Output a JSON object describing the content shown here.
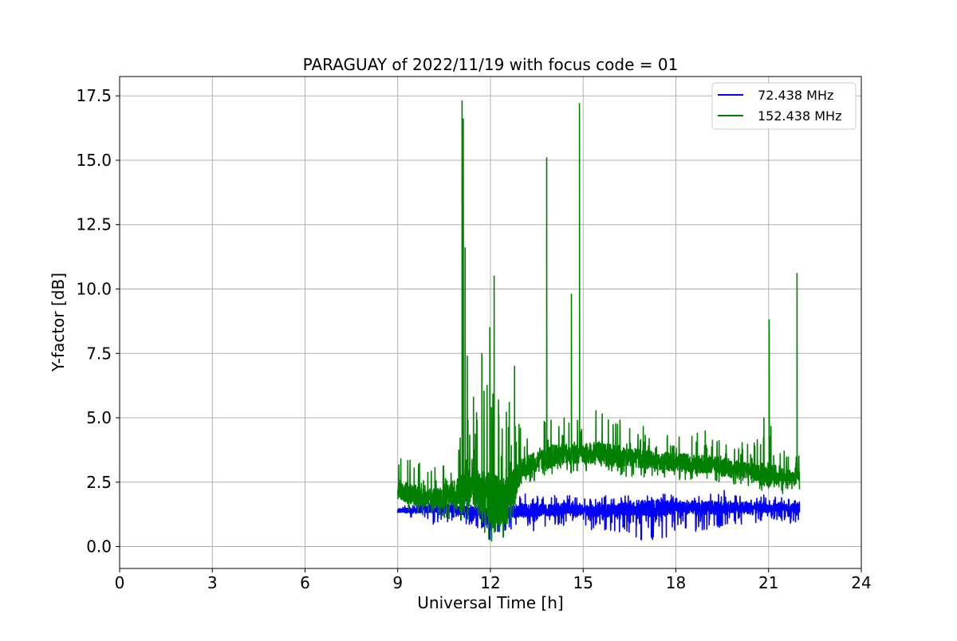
{
  "chart_data": {
    "type": "line",
    "title": "PARAGUAY of 2022/11/19 with focus code = 01",
    "xlabel": "Universal Time [h]",
    "ylabel": "Y-factor [dB]",
    "xlim": [
      0,
      24
    ],
    "ylim": [
      -0.85,
      18.25
    ],
    "xticks": [
      0,
      3,
      6,
      9,
      12,
      15,
      18,
      21,
      24
    ],
    "yticks": [
      0.0,
      2.5,
      5.0,
      7.5,
      10.0,
      12.5,
      15.0,
      17.5
    ],
    "xtick_labels": [
      "0",
      "3",
      "6",
      "9",
      "12",
      "15",
      "18",
      "21",
      "24"
    ],
    "ytick_labels": [
      "0.0",
      "2.5",
      "5.0",
      "7.5",
      "10.0",
      "12.5",
      "15.0",
      "17.5"
    ],
    "grid": true,
    "legend": "top-right",
    "series": [
      {
        "name": " 72.438 MHz",
        "color": "#0000ff",
        "x": [
          9.0,
          9.5,
          10.0,
          10.5,
          11.0,
          11.5,
          12.0,
          12.5,
          13.0,
          13.5,
          14.0,
          14.5,
          15.0,
          15.5,
          16.0,
          16.5,
          17.0,
          17.5,
          18.0,
          18.5,
          19.0,
          19.5,
          20.0,
          20.5,
          21.0,
          21.5,
          22.0
        ],
        "y": [
          1.4,
          1.4,
          1.5,
          1.5,
          1.4,
          1.4,
          1.2,
          1.3,
          1.4,
          1.4,
          1.4,
          1.5,
          1.4,
          1.4,
          1.4,
          1.5,
          1.5,
          1.5,
          1.5,
          1.5,
          1.5,
          1.5,
          1.5,
          1.5,
          1.5,
          1.5,
          1.5
        ],
        "noise_band": [
          [
            9.0,
            1.3,
            1.7
          ],
          [
            9.5,
            1.0,
            1.7
          ],
          [
            10.0,
            0.8,
            1.8
          ],
          [
            10.5,
            0.9,
            1.9
          ],
          [
            11.0,
            0.9,
            1.8
          ],
          [
            11.5,
            0.8,
            1.8
          ],
          [
            12.0,
            0.2,
            1.6
          ],
          [
            12.5,
            0.6,
            1.8
          ],
          [
            13.0,
            0.5,
            2.1
          ],
          [
            13.5,
            0.6,
            2.1
          ],
          [
            14.0,
            0.6,
            2.0
          ],
          [
            14.5,
            0.7,
            2.0
          ],
          [
            15.0,
            0.7,
            1.9
          ],
          [
            15.5,
            0.6,
            2.0
          ],
          [
            16.0,
            0.5,
            2.0
          ],
          [
            16.5,
            0.4,
            2.0
          ],
          [
            17.0,
            0.2,
            2.1
          ],
          [
            17.5,
            0.1,
            2.1
          ],
          [
            18.0,
            0.6,
            2.0
          ],
          [
            18.5,
            0.6,
            2.0
          ],
          [
            19.0,
            0.5,
            2.0
          ],
          [
            19.5,
            0.7,
            2.2
          ],
          [
            20.0,
            0.8,
            2.0
          ],
          [
            20.5,
            0.6,
            2.0
          ],
          [
            21.0,
            1.0,
            2.0
          ],
          [
            21.5,
            1.0,
            1.9
          ],
          [
            22.0,
            0.7,
            1.9
          ]
        ]
      },
      {
        "name": "152.438 MHz",
        "color": "#008000",
        "x": [
          9.0,
          9.5,
          10.0,
          10.5,
          11.0,
          11.5,
          12.0,
          12.5,
          13.0,
          13.5,
          14.0,
          14.5,
          15.0,
          15.5,
          16.0,
          16.5,
          17.0,
          17.5,
          18.0,
          18.5,
          19.0,
          19.5,
          20.0,
          20.5,
          21.0,
          21.5,
          22.0
        ],
        "y": [
          2.2,
          2.0,
          1.9,
          1.9,
          2.1,
          2.3,
          1.7,
          1.6,
          3.0,
          3.3,
          3.5,
          3.6,
          3.6,
          3.6,
          3.5,
          3.5,
          3.4,
          3.3,
          3.3,
          3.2,
          3.2,
          3.1,
          3.0,
          2.9,
          2.8,
          2.7,
          2.7
        ],
        "noise_band": [
          [
            9.0,
            1.5,
            3.8
          ],
          [
            9.5,
            1.2,
            3.5
          ],
          [
            10.0,
            1.1,
            3.0
          ],
          [
            10.5,
            1.1,
            3.3
          ],
          [
            11.0,
            0.9,
            4.5
          ],
          [
            11.5,
            0.8,
            5.8
          ],
          [
            12.0,
            0.0,
            6.6
          ],
          [
            12.5,
            0.4,
            6.2
          ],
          [
            13.0,
            2.0,
            4.6
          ],
          [
            13.5,
            2.5,
            4.8
          ],
          [
            14.0,
            2.7,
            5.3
          ],
          [
            14.5,
            2.8,
            5.0
          ],
          [
            15.0,
            2.9,
            5.1
          ],
          [
            15.5,
            2.8,
            5.5
          ],
          [
            16.0,
            2.8,
            5.3
          ],
          [
            16.5,
            2.7,
            5.0
          ],
          [
            17.0,
            2.7,
            4.8
          ],
          [
            17.5,
            2.7,
            4.7
          ],
          [
            18.0,
            2.6,
            4.8
          ],
          [
            18.5,
            2.6,
            4.6
          ],
          [
            19.0,
            2.5,
            4.5
          ],
          [
            19.5,
            2.4,
            4.5
          ],
          [
            20.0,
            2.3,
            4.2
          ],
          [
            20.5,
            2.2,
            4.0
          ],
          [
            21.0,
            2.1,
            5.0
          ],
          [
            21.5,
            2.0,
            3.9
          ],
          [
            22.0,
            2.1,
            3.5
          ]
        ],
        "spikes": [
          [
            11.08,
            17.3
          ],
          [
            11.12,
            16.6
          ],
          [
            11.18,
            11.6
          ],
          [
            11.25,
            7.4
          ],
          [
            11.45,
            5.8
          ],
          [
            11.55,
            5.2
          ],
          [
            11.72,
            7.5
          ],
          [
            11.98,
            8.5
          ],
          [
            12.12,
            10.5
          ],
          [
            12.35,
            3.5
          ],
          [
            12.78,
            7.0
          ],
          [
            13.82,
            15.1
          ],
          [
            14.62,
            9.8
          ],
          [
            14.88,
            17.2
          ],
          [
            20.85,
            5.0
          ],
          [
            21.02,
            8.8
          ],
          [
            21.92,
            10.6
          ]
        ]
      }
    ]
  }
}
